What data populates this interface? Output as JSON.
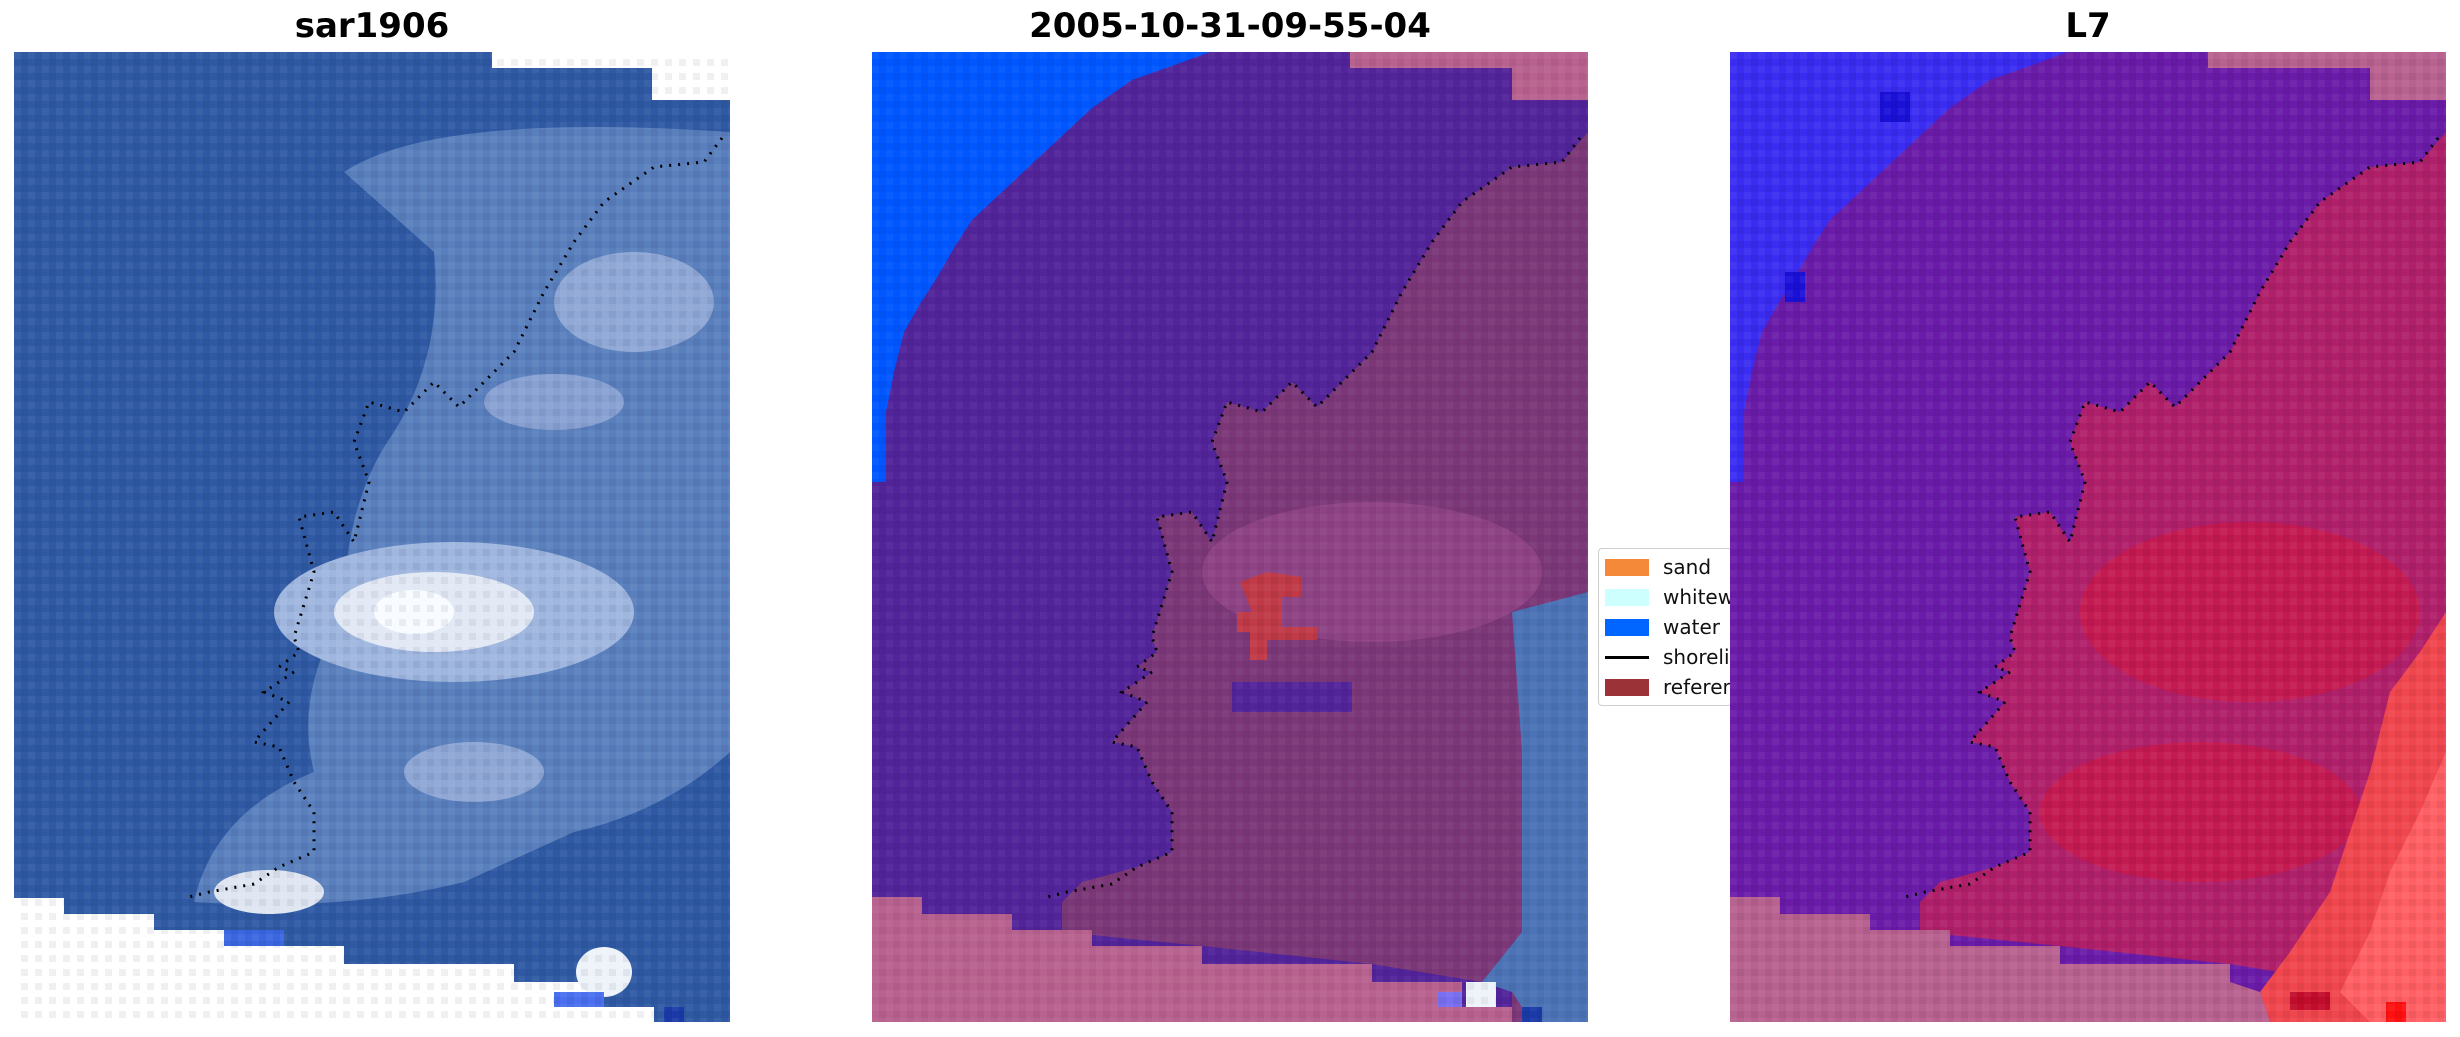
{
  "panels": [
    {
      "title": "sar1906"
    },
    {
      "title": "2005-10-31-09-55-04"
    },
    {
      "title": "L7"
    }
  ],
  "legend": {
    "items": [
      {
        "label": "sand",
        "color": "#f5893a"
      },
      {
        "label": "whitewater",
        "color": "#ccfffe"
      },
      {
        "label": "water",
        "color": "#0066ff"
      },
      {
        "label": "shoreline",
        "color": "#000000"
      },
      {
        "label": "reference",
        "color": "#9a3238"
      }
    ]
  }
}
